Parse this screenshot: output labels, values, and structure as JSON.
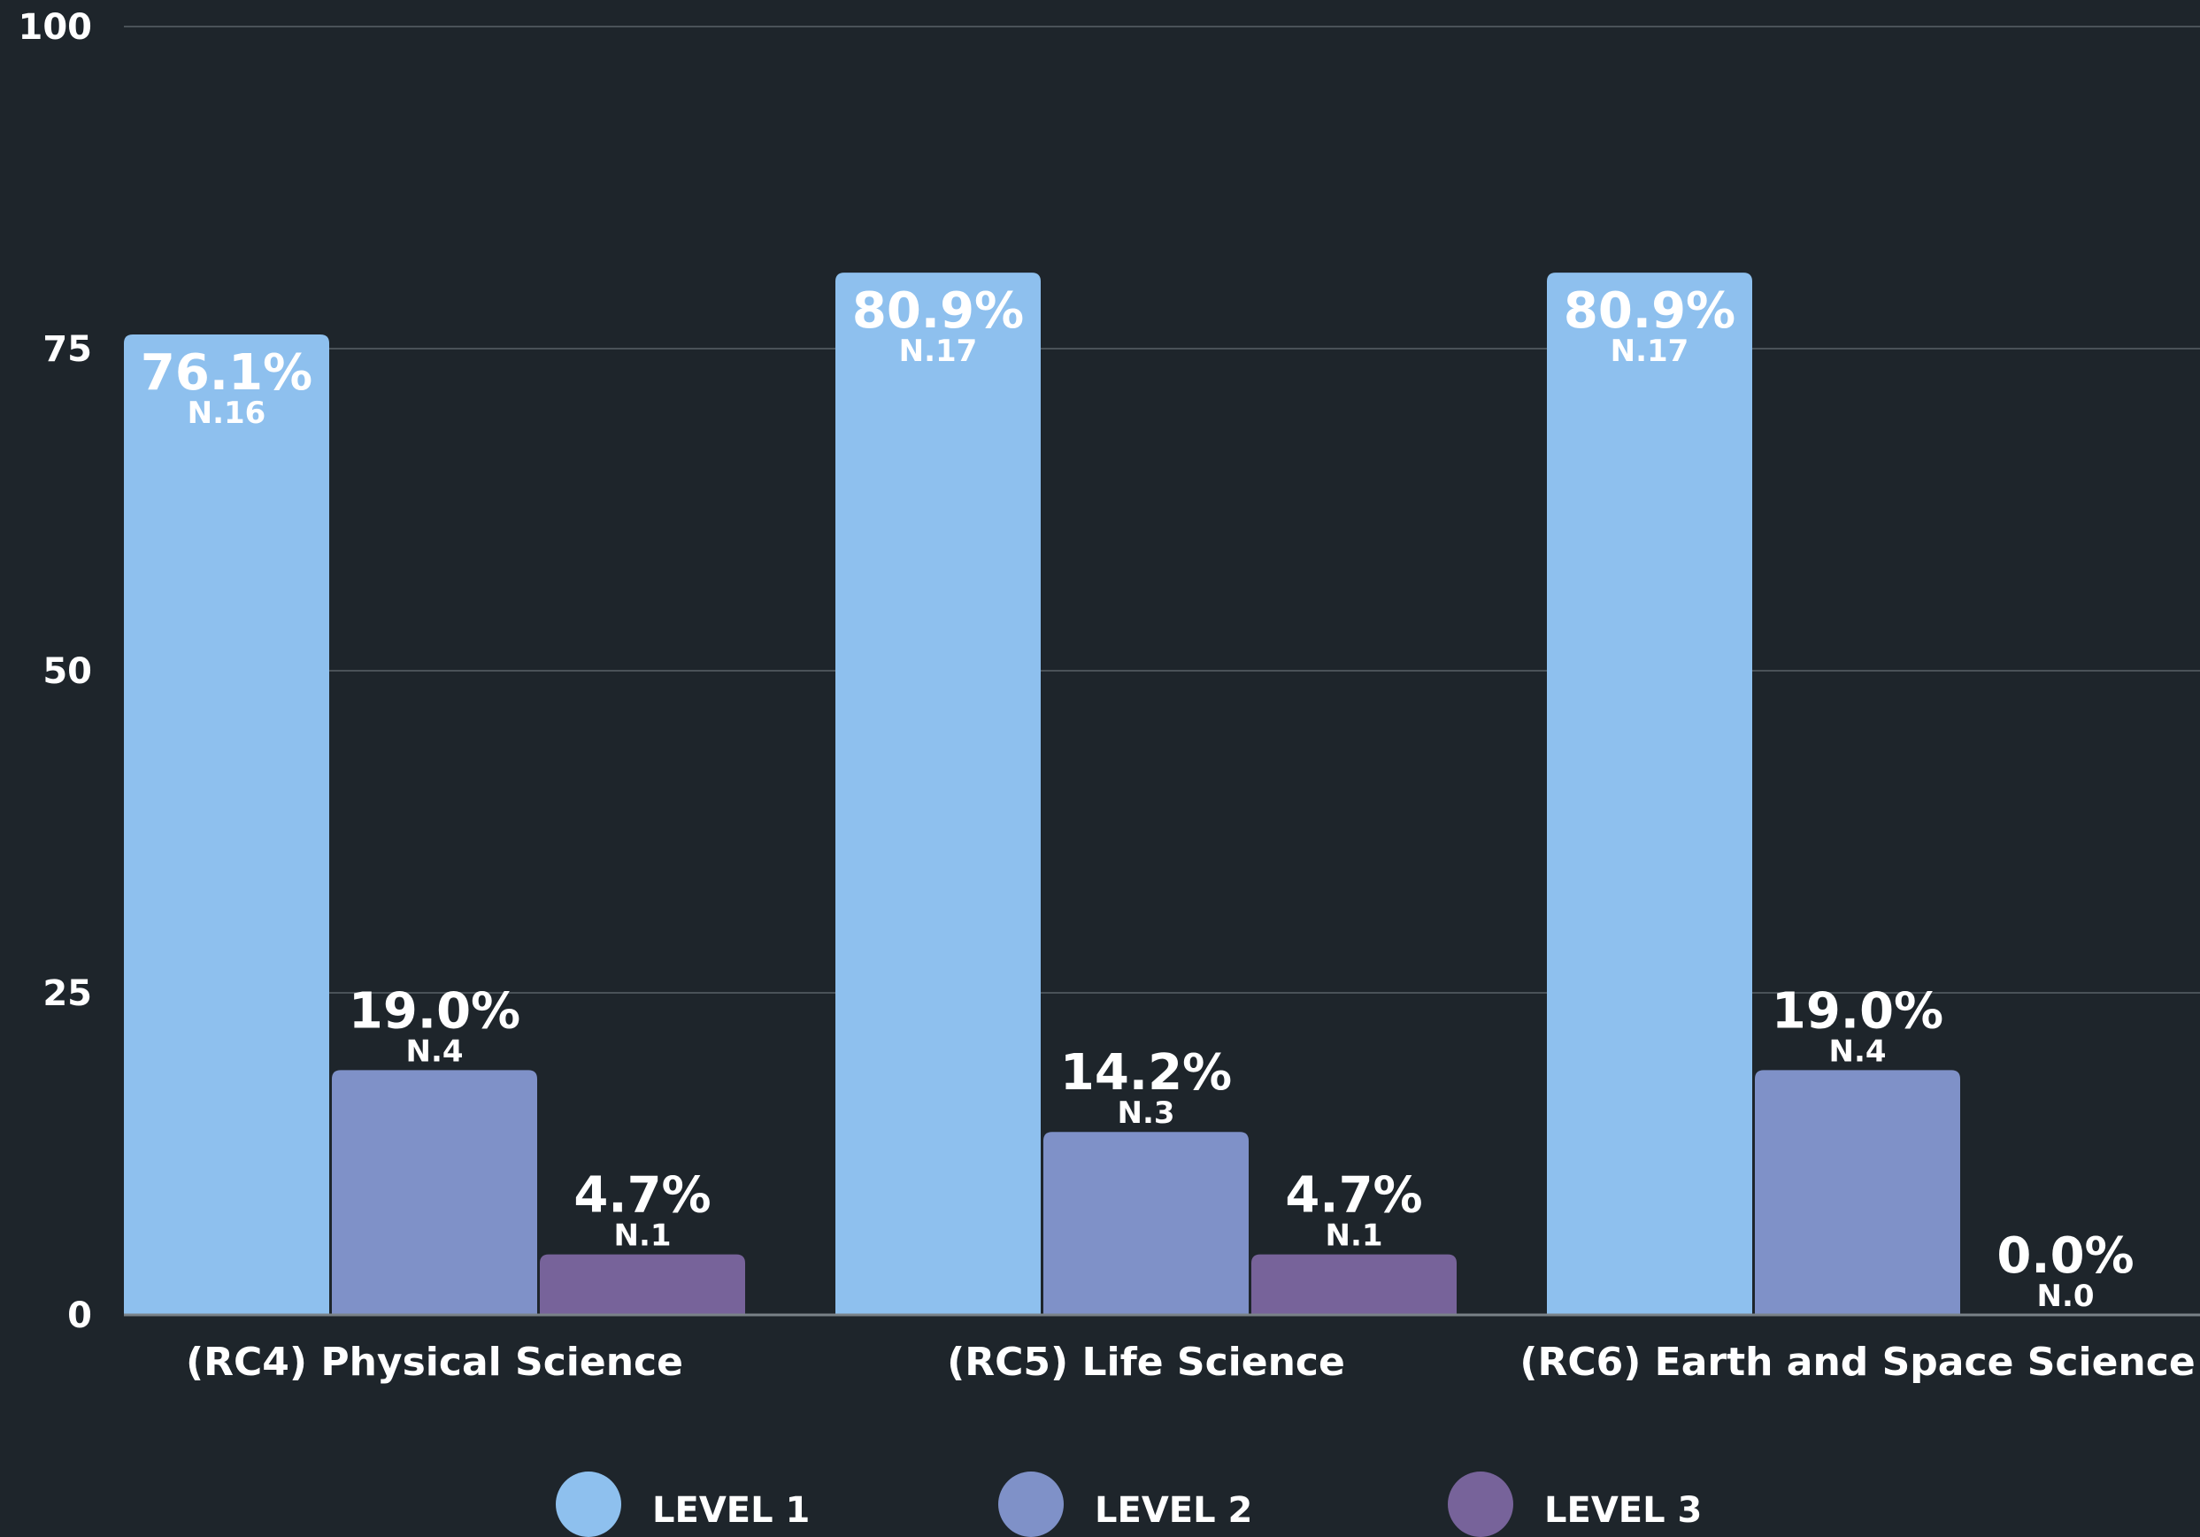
{
  "chart_data": {
    "type": "bar",
    "categories": [
      "(RC4) Physical Science",
      "(RC5) Life Science",
      "(RC6) Earth and Space Science"
    ],
    "series": [
      {
        "name": "LEVEL 1",
        "color": "#8ec0ee",
        "values": [
          76.1,
          80.9,
          80.9
        ],
        "labels": [
          "76.1%",
          "80.9%",
          "80.9%"
        ],
        "counts": [
          "N.16",
          "N.17",
          "N.17"
        ]
      },
      {
        "name": "LEVEL 2",
        "color": "#7f91c8",
        "values": [
          19.0,
          14.2,
          19.0
        ],
        "labels": [
          "19.0%",
          "14.2%",
          "19.0%"
        ],
        "counts": [
          "N.4",
          "N.3",
          "N.4"
        ]
      },
      {
        "name": "LEVEL 3",
        "color": "#77639a",
        "values": [
          4.7,
          4.7,
          0.0
        ],
        "labels": [
          "4.7%",
          "4.7%",
          "0.0%"
        ],
        "counts": [
          "N.1",
          "N.1",
          "N.0"
        ]
      }
    ],
    "yticks": [
      "0",
      "25",
      "50",
      "75",
      "100"
    ],
    "ylim": [
      0,
      100
    ],
    "grid": true,
    "legend_position": "bottom-center",
    "title": "",
    "xlabel": "",
    "ylabel": ""
  }
}
